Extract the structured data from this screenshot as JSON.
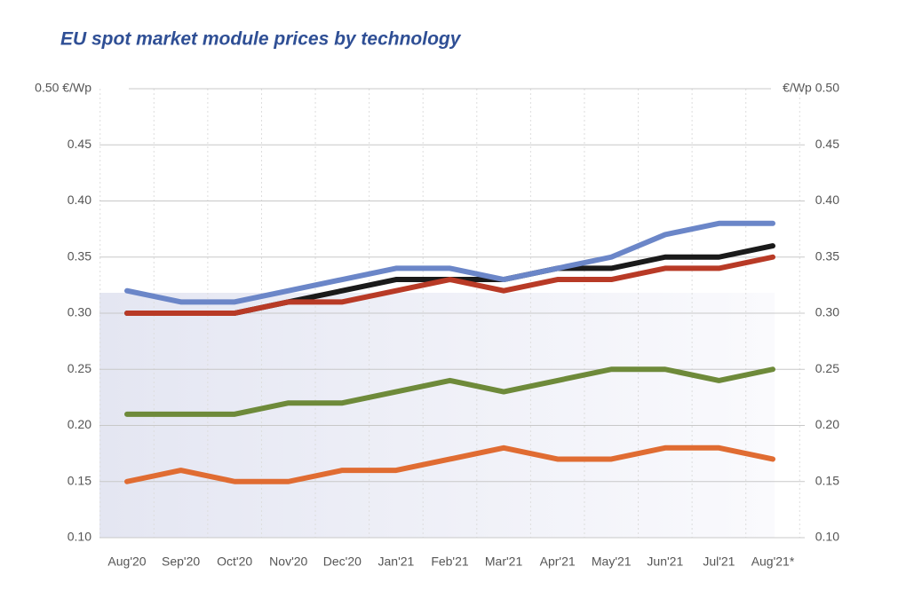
{
  "chart_data": {
    "type": "line",
    "title": "EU spot market module prices  by technology",
    "categories": [
      "Aug'20",
      "Sep'20",
      "Oct'20",
      "Nov'20",
      "Dec'20",
      "Jan'21",
      "Feb'21",
      "Mar'21",
      "Apr'21",
      "May'21",
      "Jun'21",
      "Jul'21",
      "Aug'21*"
    ],
    "series": [
      {
        "color": "#e06c32",
        "values": [
          0.15,
          0.16,
          0.15,
          0.15,
          0.16,
          0.16,
          0.17,
          0.18,
          0.17,
          0.17,
          0.18,
          0.18,
          0.17
        ]
      },
      {
        "color": "#6e8a3a",
        "values": [
          0.21,
          0.21,
          0.21,
          0.22,
          0.22,
          0.23,
          0.24,
          0.23,
          0.24,
          0.25,
          0.25,
          0.24,
          0.25
        ]
      },
      {
        "color": "#1a1a1a",
        "values": [
          0.3,
          0.3,
          0.3,
          0.31,
          0.32,
          0.33,
          0.33,
          0.33,
          0.34,
          0.34,
          0.35,
          0.35,
          0.36
        ]
      },
      {
        "color": "#6b86c8",
        "values": [
          0.32,
          0.31,
          0.31,
          0.32,
          0.33,
          0.34,
          0.34,
          0.33,
          0.34,
          0.35,
          0.37,
          0.38,
          0.38
        ]
      },
      {
        "color": "#b83a26",
        "values": [
          0.3,
          0.3,
          0.3,
          0.31,
          0.31,
          0.32,
          0.33,
          0.32,
          0.33,
          0.33,
          0.34,
          0.34,
          0.35
        ]
      }
    ],
    "ylim": [
      0.1,
      0.5
    ],
    "yticks": [
      {
        "value": 0.1,
        "label": "0.10"
      },
      0.15,
      {
        "value": 0.2,
        "label": "0.20"
      },
      0.25,
      {
        "value": 0.3,
        "label": "0.30"
      },
      0.35,
      {
        "value": 0.4,
        "label": "0.40"
      },
      0.45,
      {
        "value": 0.5,
        "label": "0.50 €/Wp"
      }
    ],
    "y2lim": [
      0.1,
      0.5
    ],
    "y2ticks": [
      {
        "value": 0.1,
        "label": "0.10"
      },
      0.15,
      {
        "value": 0.2,
        "label": "0.20"
      },
      0.25,
      {
        "value": 0.3,
        "label": "0.30"
      },
      0.35,
      {
        "value": 0.4,
        "label": "0.40"
      },
      0.45,
      {
        "value": 0.5,
        "label": "€/Wp 0.50"
      }
    ],
    "grid": true
  }
}
